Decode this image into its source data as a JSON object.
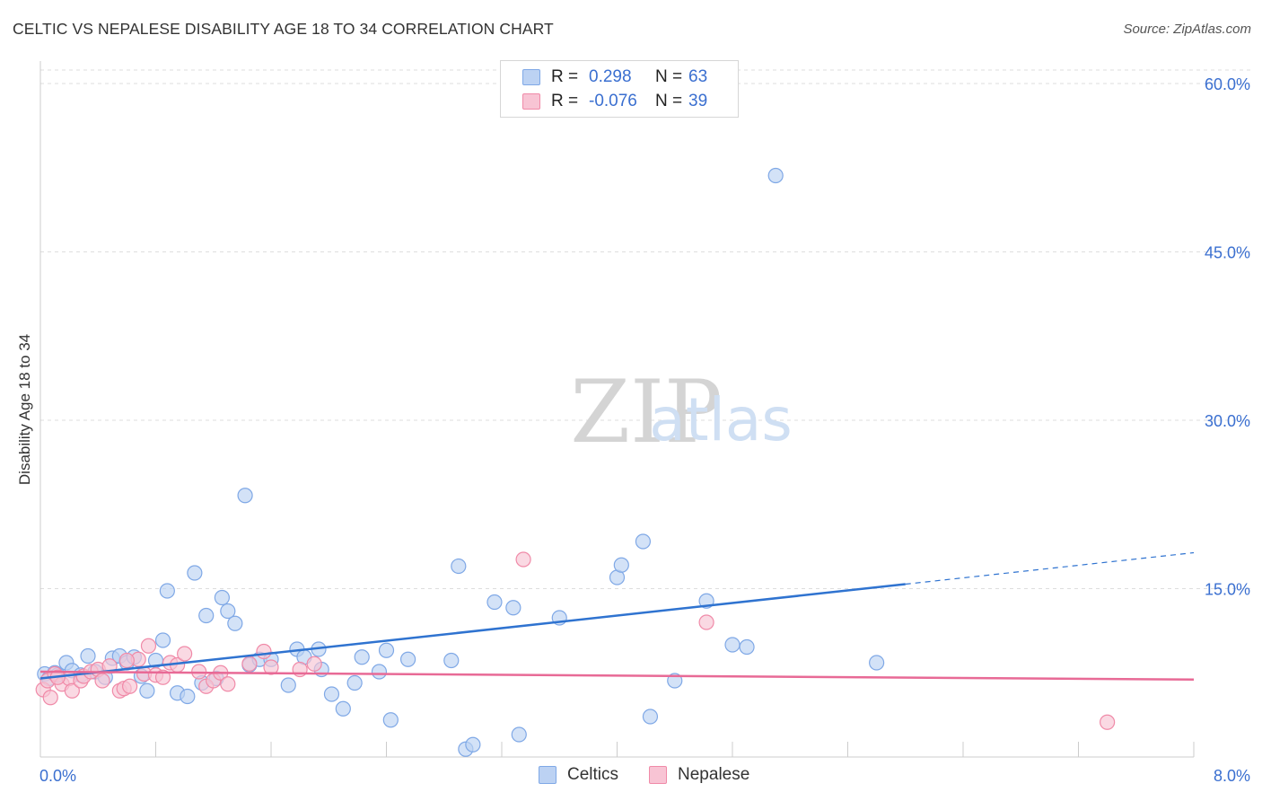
{
  "header": {
    "title": "CELTIC VS NEPALESE DISABILITY AGE 18 TO 34 CORRELATION CHART",
    "source": "Source: ZipAtlas.com"
  },
  "watermark": {
    "zip": "ZIP",
    "atlas": "atlas"
  },
  "legend": {
    "r_label": "R =",
    "n_label": "N =",
    "rows": [
      {
        "r": "0.298",
        "n": "63"
      },
      {
        "r": "-0.076",
        "n": "39"
      }
    ]
  },
  "chart_data": {
    "type": "scatter",
    "title": "CELTIC VS NEPALESE DISABILITY AGE 18 TO 34 CORRELATION CHART",
    "xlabel": "",
    "ylabel": "Disability Age 18 to 34",
    "xlim": [
      0,
      8
    ],
    "ylim": [
      0,
      62
    ],
    "x_tick_labels": [
      "0.0%",
      "8.0%"
    ],
    "y_ticks": [
      15,
      30,
      45,
      60
    ],
    "y_tick_labels": [
      "15.0%",
      "30.0%",
      "45.0%",
      "60.0%"
    ],
    "grid": true,
    "series": [
      {
        "name": "Celtics",
        "color": "#7fa8e6",
        "fill": "#bcd2f3",
        "line_color": "#2f73d0",
        "trend": {
          "x0": 0.0,
          "y0": 7.0,
          "x1": 6.0,
          "y1": 15.4,
          "dash_x1": 8.0,
          "dash_y1": 18.2
        },
        "points": [
          [
            0.03,
            7.4
          ],
          [
            0.06,
            7.0
          ],
          [
            0.1,
            7.5
          ],
          [
            0.12,
            7.3
          ],
          [
            0.18,
            8.4
          ],
          [
            0.22,
            7.7
          ],
          [
            0.28,
            7.3
          ],
          [
            0.33,
            9.0
          ],
          [
            0.38,
            7.6
          ],
          [
            0.45,
            7.1
          ],
          [
            0.5,
            8.8
          ],
          [
            0.55,
            9.0
          ],
          [
            0.6,
            8.4
          ],
          [
            0.65,
            8.9
          ],
          [
            0.7,
            7.2
          ],
          [
            0.74,
            5.9
          ],
          [
            0.8,
            8.6
          ],
          [
            0.85,
            10.4
          ],
          [
            0.88,
            14.8
          ],
          [
            0.95,
            5.7
          ],
          [
            1.02,
            5.4
          ],
          [
            1.07,
            16.4
          ],
          [
            1.12,
            6.6
          ],
          [
            1.15,
            12.6
          ],
          [
            1.22,
            7.0
          ],
          [
            1.26,
            14.2
          ],
          [
            1.3,
            13.0
          ],
          [
            1.35,
            11.9
          ],
          [
            1.42,
            23.3
          ],
          [
            1.45,
            8.2
          ],
          [
            1.52,
            8.7
          ],
          [
            1.6,
            8.7
          ],
          [
            1.72,
            6.4
          ],
          [
            1.78,
            9.6
          ],
          [
            1.83,
            8.9
          ],
          [
            1.93,
            9.6
          ],
          [
            1.95,
            7.8
          ],
          [
            2.02,
            5.6
          ],
          [
            2.1,
            4.3
          ],
          [
            2.18,
            6.6
          ],
          [
            2.23,
            8.9
          ],
          [
            2.35,
            7.6
          ],
          [
            2.4,
            9.5
          ],
          [
            2.43,
            3.3
          ],
          [
            2.55,
            8.7
          ],
          [
            2.85,
            8.6
          ],
          [
            2.9,
            17.0
          ],
          [
            2.95,
            0.7
          ],
          [
            3.0,
            1.1
          ],
          [
            3.15,
            13.8
          ],
          [
            3.28,
            13.3
          ],
          [
            3.32,
            2.0
          ],
          [
            3.6,
            12.4
          ],
          [
            4.0,
            16.0
          ],
          [
            4.03,
            17.1
          ],
          [
            4.18,
            19.2
          ],
          [
            4.23,
            3.6
          ],
          [
            4.4,
            6.8
          ],
          [
            4.62,
            13.9
          ],
          [
            4.8,
            10.0
          ],
          [
            4.9,
            9.8
          ],
          [
            5.1,
            51.8
          ],
          [
            5.8,
            8.4
          ]
        ]
      },
      {
        "name": "Nepalese",
        "color": "#f08aa8",
        "fill": "#f8c4d4",
        "line_color": "#e86a96",
        "trend": {
          "x0": 0.0,
          "y0": 7.6,
          "x1": 8.0,
          "y1": 6.9
        },
        "points": [
          [
            0.02,
            6.0
          ],
          [
            0.05,
            6.8
          ],
          [
            0.1,
            7.4
          ],
          [
            0.15,
            6.5
          ],
          [
            0.2,
            7.0
          ],
          [
            0.22,
            5.9
          ],
          [
            0.28,
            6.8
          ],
          [
            0.3,
            7.2
          ],
          [
            0.35,
            7.6
          ],
          [
            0.4,
            7.8
          ],
          [
            0.43,
            6.8
          ],
          [
            0.48,
            8.1
          ],
          [
            0.55,
            5.9
          ],
          [
            0.58,
            6.1
          ],
          [
            0.62,
            6.3
          ],
          [
            0.68,
            8.7
          ],
          [
            0.72,
            7.4
          ],
          [
            0.75,
            9.9
          ],
          [
            0.8,
            7.3
          ],
          [
            0.85,
            7.1
          ],
          [
            0.9,
            8.4
          ],
          [
            0.95,
            8.2
          ],
          [
            1.0,
            9.2
          ],
          [
            1.1,
            7.6
          ],
          [
            1.15,
            6.3
          ],
          [
            1.2,
            6.8
          ],
          [
            1.25,
            7.5
          ],
          [
            1.3,
            6.5
          ],
          [
            1.45,
            8.3
          ],
          [
            1.55,
            9.4
          ],
          [
            1.6,
            8.0
          ],
          [
            1.8,
            7.8
          ],
          [
            1.9,
            8.3
          ],
          [
            3.35,
            17.6
          ],
          [
            4.62,
            12.0
          ],
          [
            7.4,
            3.1
          ],
          [
            0.07,
            5.3
          ],
          [
            0.12,
            7.1
          ],
          [
            0.6,
            8.6
          ]
        ]
      }
    ]
  }
}
